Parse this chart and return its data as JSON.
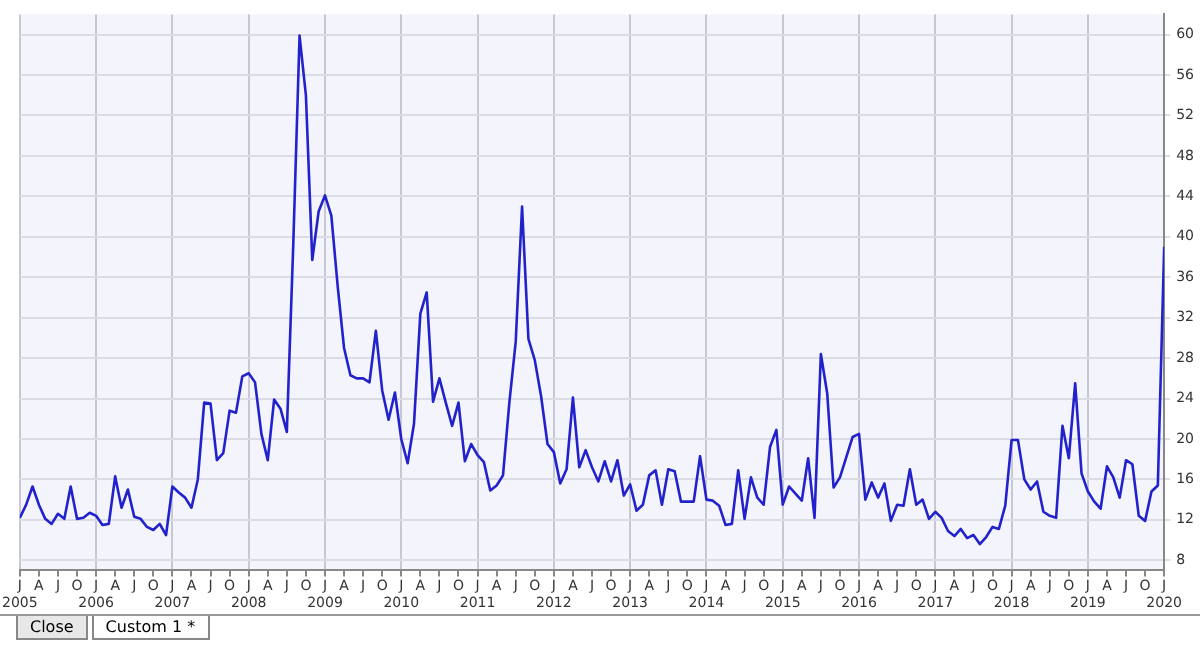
{
  "chart_data": {
    "type": "line",
    "x": [
      "2005-01",
      "2005-02",
      "2005-03",
      "2005-04",
      "2005-05",
      "2005-06",
      "2005-07",
      "2005-08",
      "2005-09",
      "2005-10",
      "2005-11",
      "2005-12",
      "2006-01",
      "2006-02",
      "2006-03",
      "2006-04",
      "2006-05",
      "2006-06",
      "2006-07",
      "2006-08",
      "2006-09",
      "2006-10",
      "2006-11",
      "2006-12",
      "2007-01",
      "2007-02",
      "2007-03",
      "2007-04",
      "2007-05",
      "2007-06",
      "2007-07",
      "2007-08",
      "2007-09",
      "2007-10",
      "2007-11",
      "2007-12",
      "2008-01",
      "2008-02",
      "2008-03",
      "2008-04",
      "2008-05",
      "2008-06",
      "2008-07",
      "2008-08",
      "2008-09",
      "2008-10",
      "2008-11",
      "2008-12",
      "2009-01",
      "2009-02",
      "2009-03",
      "2009-04",
      "2009-05",
      "2009-06",
      "2009-07",
      "2009-08",
      "2009-09",
      "2009-10",
      "2009-11",
      "2009-12",
      "2010-01",
      "2010-02",
      "2010-03",
      "2010-04",
      "2010-05",
      "2010-06",
      "2010-07",
      "2010-08",
      "2010-09",
      "2010-10",
      "2010-11",
      "2010-12",
      "2011-01",
      "2011-02",
      "2011-03",
      "2011-04",
      "2011-05",
      "2011-06",
      "2011-07",
      "2011-08",
      "2011-09",
      "2011-10",
      "2011-11",
      "2011-12",
      "2012-01",
      "2012-02",
      "2012-03",
      "2012-04",
      "2012-05",
      "2012-06",
      "2012-07",
      "2012-08",
      "2012-09",
      "2012-10",
      "2012-11",
      "2012-12",
      "2013-01",
      "2013-02",
      "2013-03",
      "2013-04",
      "2013-05",
      "2013-06",
      "2013-07",
      "2013-08",
      "2013-09",
      "2013-10",
      "2013-11",
      "2013-12",
      "2014-01",
      "2014-02",
      "2014-03",
      "2014-04",
      "2014-05",
      "2014-06",
      "2014-07",
      "2014-08",
      "2014-09",
      "2014-10",
      "2014-11",
      "2014-12",
      "2015-01",
      "2015-02",
      "2015-03",
      "2015-04",
      "2015-05",
      "2015-06",
      "2015-07",
      "2015-08",
      "2015-09",
      "2015-10",
      "2015-11",
      "2015-12",
      "2016-01",
      "2016-02",
      "2016-03",
      "2016-04",
      "2016-05",
      "2016-06",
      "2016-07",
      "2016-08",
      "2016-09",
      "2016-10",
      "2016-11",
      "2016-12",
      "2017-01",
      "2017-02",
      "2017-03",
      "2017-04",
      "2017-05",
      "2017-06",
      "2017-07",
      "2017-08",
      "2017-09",
      "2017-10",
      "2017-11",
      "2017-12",
      "2018-01",
      "2018-02",
      "2018-03",
      "2018-04",
      "2018-05",
      "2018-06",
      "2018-07",
      "2018-08",
      "2018-09",
      "2018-10",
      "2018-11",
      "2018-12",
      "2019-01",
      "2019-02",
      "2019-03",
      "2019-04",
      "2019-05",
      "2019-06",
      "2019-07",
      "2019-08",
      "2019-09",
      "2019-10",
      "2019-11",
      "2019-12",
      "2020-01"
    ],
    "series": [
      {
        "color": "#2222cc",
        "values": [
          12.2,
          13.5,
          15.3,
          13.5,
          12.1,
          11.6,
          12.6,
          12.1,
          15.3,
          12.1,
          12.2,
          12.7,
          12.4,
          11.5,
          11.6,
          16.3,
          13.2,
          15.0,
          12.3,
          12.1,
          11.3,
          11.0,
          11.6,
          10.5,
          15.3,
          14.7,
          14.2,
          13.2,
          16.0,
          23.6,
          23.5,
          17.9,
          18.6,
          22.8,
          22.6,
          26.2,
          26.5,
          25.6,
          20.5,
          17.9,
          23.9,
          23.0,
          20.7,
          39.0,
          59.9,
          54.0,
          37.7,
          42.5,
          44.1,
          42.1,
          35.1,
          29.0,
          26.3,
          26.0,
          26.0,
          25.6,
          30.7,
          24.8,
          21.9,
          24.6,
          20.0,
          17.6,
          21.5,
          32.4,
          34.5,
          23.7,
          26.0,
          23.6,
          21.3,
          23.6,
          17.8,
          19.5,
          18.4,
          17.7,
          14.9,
          15.4,
          16.4,
          23.6,
          29.6,
          43.0,
          29.9,
          27.8,
          24.2,
          19.5,
          18.7,
          15.6,
          17.0,
          24.1,
          17.2,
          18.9,
          17.2,
          15.8,
          17.8,
          15.8,
          17.9,
          14.4,
          15.5,
          12.9,
          13.5,
          16.4,
          16.9,
          13.5,
          17.0,
          16.8,
          13.8,
          13.8,
          13.8,
          18.3,
          14.0,
          13.9,
          13.4,
          11.5,
          11.6,
          16.9,
          12.1,
          16.2,
          14.2,
          13.5,
          19.2,
          20.9,
          13.5,
          15.3,
          14.6,
          13.9,
          18.1,
          12.2,
          28.4,
          24.5,
          15.2,
          16.2,
          18.2,
          20.2,
          20.5,
          14.0,
          15.7,
          14.2,
          15.6,
          11.9,
          13.5,
          13.4,
          17.0,
          13.5,
          14.0,
          12.1,
          12.8,
          12.2,
          10.9,
          10.4,
          11.1,
          10.2,
          10.5,
          9.6,
          10.3,
          11.3,
          11.1,
          13.4,
          19.9,
          19.9,
          16.0,
          15.0,
          15.8,
          12.8,
          12.4,
          12.2,
          21.3,
          18.1,
          25.5,
          16.6,
          14.8,
          13.8,
          13.1,
          17.3,
          16.2,
          14.2,
          17.9,
          17.5,
          12.4,
          11.9,
          14.8,
          15.4,
          39.0
        ]
      }
    ],
    "xlim": [
      "2005-01",
      "2020-01"
    ],
    "xticks": [
      {
        "value": "2005-01",
        "label": "J\n2005"
      },
      {
        "value": "2005-04",
        "label": "A"
      },
      {
        "value": "2005-07",
        "label": "J"
      },
      {
        "value": "2005-10",
        "label": "O"
      },
      {
        "value": "2006-01",
        "label": "J\n2006"
      },
      {
        "value": "2006-04",
        "label": "A"
      },
      {
        "value": "2006-07",
        "label": "J"
      },
      {
        "value": "2006-10",
        "label": "O"
      },
      {
        "value": "2007-01",
        "label": "J\n2007"
      },
      {
        "value": "2007-04",
        "label": "A"
      },
      {
        "value": "2007-07",
        "label": "J"
      },
      {
        "value": "2007-10",
        "label": "O"
      },
      {
        "value": "2008-01",
        "label": "J\n2008"
      },
      {
        "value": "2008-04",
        "label": "A"
      },
      {
        "value": "2008-07",
        "label": "J"
      },
      {
        "value": "2008-10",
        "label": "O"
      },
      {
        "value": "2009-01",
        "label": "J\n2009"
      },
      {
        "value": "2009-04",
        "label": "A"
      },
      {
        "value": "2009-07",
        "label": "J"
      },
      {
        "value": "2009-10",
        "label": "O"
      },
      {
        "value": "2010-01",
        "label": "J\n2010"
      },
      {
        "value": "2010-04",
        "label": "A"
      },
      {
        "value": "2010-07",
        "label": "J"
      },
      {
        "value": "2010-10",
        "label": "O"
      },
      {
        "value": "2011-01",
        "label": "J\n2011"
      },
      {
        "value": "2011-04",
        "label": "A"
      },
      {
        "value": "2011-07",
        "label": "J"
      },
      {
        "value": "2011-10",
        "label": "O"
      },
      {
        "value": "2012-01",
        "label": "J\n2012"
      },
      {
        "value": "2012-04",
        "label": "A"
      },
      {
        "value": "2012-07",
        "label": "J"
      },
      {
        "value": "2012-10",
        "label": "O"
      },
      {
        "value": "2013-01",
        "label": "J\n2013"
      },
      {
        "value": "2013-04",
        "label": "A"
      },
      {
        "value": "2013-07",
        "label": "J"
      },
      {
        "value": "2013-10",
        "label": "O"
      },
      {
        "value": "2014-01",
        "label": "J\n2014"
      },
      {
        "value": "2014-04",
        "label": "A"
      },
      {
        "value": "2014-07",
        "label": "J"
      },
      {
        "value": "2014-10",
        "label": "O"
      },
      {
        "value": "2015-01",
        "label": "J\n2015"
      },
      {
        "value": "2015-04",
        "label": "A"
      },
      {
        "value": "2015-07",
        "label": "J"
      },
      {
        "value": "2015-10",
        "label": "O"
      },
      {
        "value": "2016-01",
        "label": "J\n2016"
      },
      {
        "value": "2016-04",
        "label": "A"
      },
      {
        "value": "2016-07",
        "label": "J"
      },
      {
        "value": "2016-10",
        "label": "O"
      },
      {
        "value": "2017-01",
        "label": "J\n2017"
      },
      {
        "value": "2017-04",
        "label": "A"
      },
      {
        "value": "2017-07",
        "label": "J"
      },
      {
        "value": "2017-10",
        "label": "O"
      },
      {
        "value": "2018-01",
        "label": "J\n2018"
      },
      {
        "value": "2018-04",
        "label": "A"
      },
      {
        "value": "2018-07",
        "label": "J"
      },
      {
        "value": "2018-10",
        "label": "O"
      },
      {
        "value": "2019-01",
        "label": "J\n2019"
      },
      {
        "value": "2019-04",
        "label": "A"
      },
      {
        "value": "2019-07",
        "label": "J"
      },
      {
        "value": "2019-10",
        "label": "O"
      },
      {
        "value": "2020-01",
        "label": "J\n2020"
      }
    ],
    "ylim": [
      7,
      62
    ],
    "yticks": [
      8,
      12,
      16,
      20,
      24,
      28,
      32,
      36,
      40,
      44,
      48,
      52,
      56,
      60
    ],
    "grid": true,
    "legend": false,
    "marker": "none",
    "line_style": "solid",
    "annotations": [
      "Close",
      "Custom 1 *"
    ]
  }
}
